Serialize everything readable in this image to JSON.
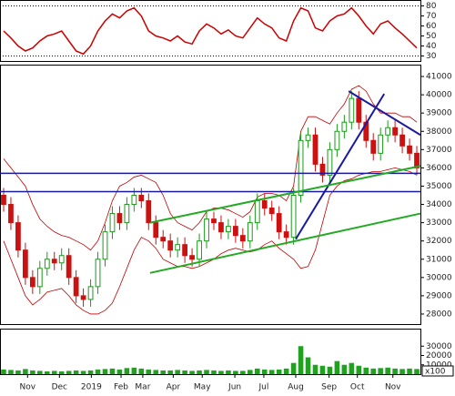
{
  "chart_data": [
    {
      "type": "line",
      "color": "#cc0000",
      "ylim": [
        25,
        85
      ],
      "yticks": [
        30,
        40,
        50,
        60,
        70,
        80
      ],
      "ref_levels": [
        80,
        30
      ],
      "values": [
        55,
        48,
        40,
        35,
        38,
        45,
        50,
        52,
        55,
        45,
        35,
        32,
        40,
        55,
        65,
        72,
        68,
        75,
        78,
        70,
        55,
        50,
        48,
        45,
        50,
        44,
        42,
        55,
        62,
        58,
        52,
        56,
        50,
        48,
        58,
        68,
        62,
        58,
        48,
        45,
        65,
        78,
        75,
        58,
        55,
        65,
        70,
        72,
        78,
        70,
        60,
        52,
        62,
        65,
        58,
        52,
        45,
        38
      ]
    },
    {
      "type": "candlestick",
      "up_color": "#1a9a1a",
      "down_color": "#cc1111",
      "xlim": [
        -0.5,
        57.5
      ],
      "ylim": [
        27500,
        41600
      ],
      "yticks": [
        28000,
        29000,
        30000,
        31000,
        32000,
        33000,
        34000,
        35000,
        36000,
        37000,
        38000,
        39000,
        40000,
        41000
      ],
      "x": [
        0,
        1,
        2,
        3,
        4,
        5,
        6,
        7,
        8,
        9,
        10,
        11,
        12,
        13,
        14,
        15,
        16,
        17,
        18,
        19,
        20,
        21,
        22,
        23,
        24,
        25,
        26,
        27,
        28,
        29,
        30,
        31,
        32,
        33,
        34,
        35,
        36,
        37,
        38,
        39,
        40,
        41,
        42,
        43,
        44,
        45,
        46,
        47,
        48,
        49,
        50,
        51,
        52,
        53,
        54,
        55,
        56,
        57
      ],
      "open": [
        34500,
        34000,
        33000,
        31500,
        30000,
        29500,
        30500,
        31000,
        30800,
        31200,
        30000,
        29000,
        28800,
        29500,
        31000,
        32500,
        33500,
        33000,
        34000,
        34500,
        34200,
        33000,
        32200,
        32000,
        31500,
        31800,
        31200,
        31000,
        32000,
        33200,
        33000,
        32500,
        32800,
        32300,
        32000,
        33000,
        34200,
        33800,
        33500,
        32500,
        32200,
        34500,
        37500,
        37800,
        36200,
        35600,
        37000,
        38000,
        38500,
        39800,
        38500,
        37500,
        36800,
        37800,
        38200,
        37800,
        37200,
        36800
      ],
      "high": [
        34900,
        34400,
        33400,
        31900,
        30400,
        30900,
        31400,
        31400,
        31600,
        31600,
        30400,
        29400,
        29900,
        31400,
        32900,
        33900,
        33900,
        34400,
        34900,
        34900,
        34600,
        33400,
        32600,
        32400,
        32200,
        32200,
        31600,
        32400,
        33600,
        33600,
        33400,
        33200,
        33200,
        32700,
        33400,
        34600,
        34600,
        34200,
        33900,
        32900,
        34900,
        37900,
        38200,
        38200,
        36600,
        37400,
        38400,
        38900,
        40200,
        40200,
        38900,
        37900,
        38200,
        38600,
        38600,
        38200,
        37600,
        37200
      ],
      "low": [
        33600,
        32600,
        31100,
        29600,
        29100,
        29100,
        30100,
        30400,
        30400,
        29600,
        28600,
        28400,
        28400,
        29100,
        30600,
        32100,
        32600,
        32600,
        33600,
        33800,
        32600,
        31800,
        31600,
        31100,
        31100,
        30800,
        30600,
        30600,
        31600,
        32600,
        32100,
        32100,
        31900,
        31600,
        31600,
        32600,
        33400,
        33100,
        32100,
        31800,
        31800,
        34100,
        37100,
        35800,
        35200,
        35200,
        36600,
        37600,
        38100,
        38100,
        37100,
        36400,
        36400,
        37400,
        37400,
        36800,
        36400,
        35600
      ],
      "close": [
        34000,
        33000,
        31500,
        30000,
        29500,
        30500,
        31000,
        30800,
        31200,
        30000,
        29000,
        28800,
        29500,
        31000,
        32500,
        33500,
        33000,
        34000,
        34500,
        34200,
        33000,
        32200,
        32000,
        31500,
        31800,
        31200,
        31000,
        32000,
        33200,
        33000,
        32500,
        32800,
        32300,
        32000,
        33000,
        34200,
        33800,
        33500,
        32500,
        32200,
        34500,
        37500,
        37800,
        36200,
        35600,
        37000,
        38000,
        38500,
        39800,
        38500,
        37500,
        36800,
        37800,
        38200,
        37800,
        37200,
        36800,
        36000
      ],
      "bands": {
        "color": "#c00000",
        "upper": [
          36500,
          36000,
          35500,
          35000,
          34000,
          33200,
          32800,
          32500,
          32300,
          32200,
          32000,
          31800,
          31500,
          32000,
          33000,
          34200,
          35000,
          35200,
          35500,
          35600,
          35400,
          35200,
          34500,
          33500,
          33000,
          32800,
          32600,
          33000,
          33600,
          33800,
          33800,
          33700,
          33500,
          33300,
          33600,
          34400,
          34600,
          34600,
          34500,
          34200,
          35000,
          38000,
          38800,
          38800,
          38600,
          38400,
          39000,
          39500,
          40300,
          40500,
          40200,
          39500,
          39000,
          39000,
          39000,
          38800,
          38800,
          38500
        ],
        "lower": [
          32000,
          31000,
          30000,
          29000,
          28500,
          28800,
          29200,
          29300,
          29400,
          29000,
          28500,
          28200,
          28000,
          28000,
          28200,
          28600,
          29500,
          30500,
          31500,
          32200,
          32000,
          31600,
          31000,
          30800,
          30600,
          30600,
          30500,
          30600,
          30800,
          31000,
          31300,
          31500,
          31600,
          31500,
          31400,
          31500,
          31800,
          32000,
          31600,
          31300,
          31000,
          30500,
          30600,
          31500,
          33000,
          34500,
          35000,
          35300,
          35400,
          35600,
          35700,
          35800,
          35800,
          35900,
          36000,
          35900,
          35800,
          35600
        ]
      },
      "hlines": {
        "color": "#1a1aa0",
        "values": [
          35700,
          34700
        ]
      },
      "lines": [
        {
          "color": "#1a1aa0",
          "x": [
            40.3,
            52.5
          ],
          "y": [
            32100,
            40050
          ]
        },
        {
          "color": "#1a1aa0",
          "x": [
            47.6,
            57.5
          ],
          "y": [
            40200,
            37800
          ]
        },
        {
          "color": "#22aa22",
          "x": [
            20.2,
            57.5
          ],
          "y": [
            30250,
            33500
          ]
        },
        {
          "color": "#22aa22",
          "x": [
            20.2,
            57.5
          ],
          "y": [
            33000,
            36100
          ]
        }
      ]
    },
    {
      "type": "bar",
      "color": "#22a022",
      "ylim": [
        0,
        40000
      ],
      "yticks": [
        10000,
        20000,
        30000
      ],
      "unit_label": "x100",
      "values": [
        5000,
        4500,
        4000,
        5500,
        4000,
        3500,
        3000,
        3500,
        3000,
        3500,
        4000,
        3500,
        4000,
        5000,
        5500,
        6000,
        5000,
        6500,
        7000,
        6000,
        5000,
        4500,
        4000,
        4000,
        4500,
        4000,
        3500,
        4000,
        4500,
        4000,
        3500,
        4000,
        3500,
        3500,
        4500,
        6000,
        5000,
        4500,
        5000,
        6000,
        12000,
        30000,
        18000,
        10000,
        9000,
        8000,
        14000,
        10000,
        12000,
        9000,
        7000,
        6000,
        6500,
        7000,
        6000,
        5500,
        6000,
        5500
      ],
      "xticks": [
        {
          "value": 3.3,
          "label": "Nov"
        },
        {
          "value": 7.7,
          "label": "Dec"
        },
        {
          "value": 12.1,
          "label": "2019"
        },
        {
          "value": 16.2,
          "label": "Feb"
        },
        {
          "value": 19.2,
          "label": "Mar"
        },
        {
          "value": 23.4,
          "label": "Apr"
        },
        {
          "value": 27.4,
          "label": "May"
        },
        {
          "value": 31.9,
          "label": "Jun"
        },
        {
          "value": 35.9,
          "label": "Jul"
        },
        {
          "value": 40.3,
          "label": "Aug"
        },
        {
          "value": 44.9,
          "label": "Sep"
        },
        {
          "value": 48.8,
          "label": "Oct"
        },
        {
          "value": 53.7,
          "label": "Nov"
        }
      ]
    }
  ]
}
